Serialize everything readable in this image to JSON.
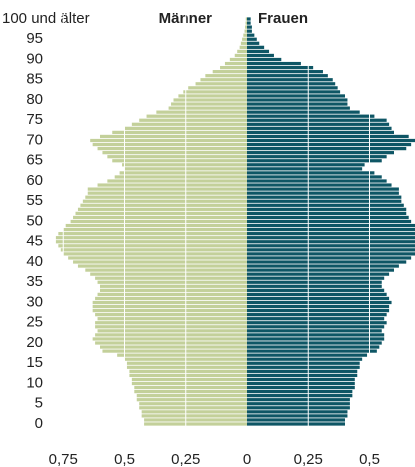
{
  "chart_data": {
    "type": "pyramid",
    "y": [
      0,
      1,
      2,
      3,
      4,
      5,
      6,
      7,
      8,
      9,
      10,
      11,
      12,
      13,
      14,
      15,
      16,
      17,
      18,
      19,
      20,
      21,
      22,
      23,
      24,
      25,
      26,
      27,
      28,
      29,
      30,
      31,
      32,
      33,
      34,
      35,
      36,
      37,
      38,
      39,
      40,
      41,
      42,
      43,
      44,
      45,
      46,
      47,
      48,
      49,
      50,
      51,
      52,
      53,
      54,
      55,
      56,
      57,
      58,
      59,
      60,
      61,
      62,
      63,
      64,
      65,
      66,
      67,
      68,
      69,
      70,
      71,
      72,
      73,
      74,
      75,
      76,
      77,
      78,
      79,
      80,
      81,
      82,
      83,
      84,
      85,
      86,
      87,
      88,
      89,
      90,
      91,
      92,
      93,
      94,
      95,
      96,
      97,
      98,
      99,
      100
    ],
    "series": [
      {
        "name": "Männer",
        "color": "#c3d09a",
        "side": "left",
        "values": [
          0.42,
          0.42,
          0.43,
          0.43,
          0.44,
          0.44,
          0.45,
          0.45,
          0.46,
          0.46,
          0.47,
          0.47,
          0.48,
          0.48,
          0.49,
          0.49,
          0.5,
          0.53,
          0.59,
          0.6,
          0.62,
          0.63,
          0.62,
          0.61,
          0.62,
          0.62,
          0.61,
          0.62,
          0.63,
          0.63,
          0.63,
          0.62,
          0.61,
          0.6,
          0.6,
          0.61,
          0.62,
          0.64,
          0.66,
          0.69,
          0.71,
          0.73,
          0.75,
          0.76,
          0.77,
          0.78,
          0.78,
          0.77,
          0.75,
          0.74,
          0.72,
          0.71,
          0.7,
          0.69,
          0.68,
          0.67,
          0.66,
          0.65,
          0.65,
          0.61,
          0.57,
          0.54,
          0.52,
          0.5,
          0.51,
          0.55,
          0.57,
          0.59,
          0.61,
          0.63,
          0.64,
          0.6,
          0.55,
          0.5,
          0.47,
          0.44,
          0.41,
          0.37,
          0.32,
          0.31,
          0.3,
          0.28,
          0.26,
          0.24,
          0.21,
          0.19,
          0.17,
          0.14,
          0.11,
          0.09,
          0.07,
          0.05,
          0.04,
          0.03,
          0.025,
          0.02,
          0.015,
          0.01,
          0.008,
          0.006,
          0.005
        ]
      },
      {
        "name": "Frauen",
        "color": "#0e5665",
        "side": "right",
        "values": [
          0.4,
          0.4,
          0.41,
          0.41,
          0.42,
          0.42,
          0.42,
          0.43,
          0.43,
          0.44,
          0.44,
          0.44,
          0.45,
          0.45,
          0.46,
          0.46,
          0.47,
          0.49,
          0.53,
          0.54,
          0.55,
          0.56,
          0.56,
          0.55,
          0.56,
          0.57,
          0.56,
          0.57,
          0.58,
          0.58,
          0.59,
          0.58,
          0.57,
          0.56,
          0.55,
          0.55,
          0.56,
          0.58,
          0.6,
          0.62,
          0.65,
          0.67,
          0.69,
          0.7,
          0.71,
          0.72,
          0.72,
          0.71,
          0.7,
          0.69,
          0.67,
          0.66,
          0.65,
          0.65,
          0.64,
          0.63,
          0.63,
          0.62,
          0.62,
          0.59,
          0.57,
          0.55,
          0.52,
          0.47,
          0.48,
          0.55,
          0.57,
          0.6,
          0.65,
          0.67,
          0.7,
          0.66,
          0.6,
          0.59,
          0.58,
          0.57,
          0.52,
          0.46,
          0.42,
          0.41,
          0.41,
          0.4,
          0.38,
          0.37,
          0.36,
          0.35,
          0.33,
          0.31,
          0.27,
          0.22,
          0.14,
          0.11,
          0.09,
          0.07,
          0.05,
          0.04,
          0.03,
          0.02,
          0.02,
          0.015,
          0.015
        ]
      }
    ],
    "ylim": [
      0,
      100
    ],
    "yticks": [
      0,
      5,
      10,
      15,
      20,
      25,
      30,
      35,
      40,
      45,
      50,
      55,
      60,
      65,
      70,
      75,
      80,
      85,
      90,
      95,
      {
        "value": 100,
        "label": "100 und älter"
      }
    ],
    "xlim": [
      0,
      0.8
    ],
    "xticks": [
      0,
      {
        "value": 0.25,
        "label": "0,25"
      },
      {
        "value": 0.5,
        "label": "0,5"
      },
      {
        "value": 0.75,
        "label": "0,75"
      }
    ],
    "grid": true
  }
}
